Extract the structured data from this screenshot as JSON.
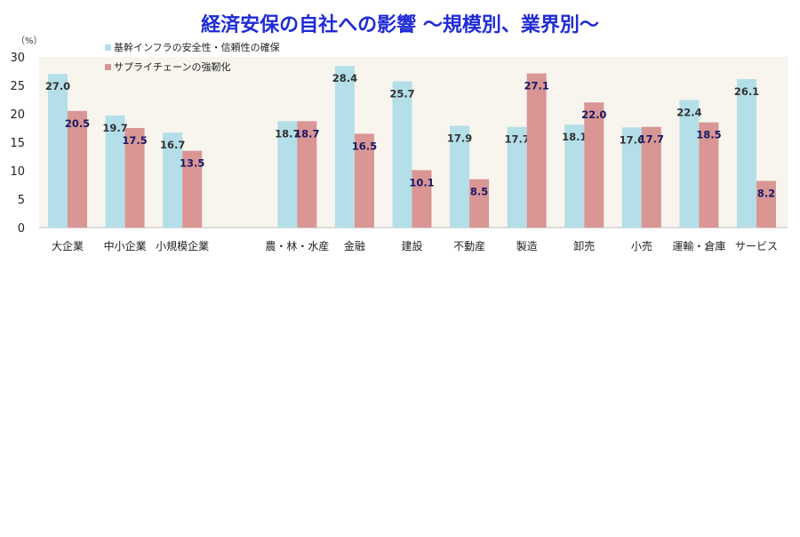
{
  "title": "経済安保の自社への影響 ～規模別、業界別～",
  "chart_data": {
    "type": "bar",
    "y_unit": "（%）",
    "ylim": [
      0,
      30
    ],
    "yticks": [
      0,
      5,
      10,
      15,
      20,
      25,
      30
    ],
    "grid": false,
    "legend_position": "top-left",
    "categories": [
      "大企業",
      "中小企業",
      "小規模企業",
      "",
      "農・林・水産",
      "金融",
      "建設",
      "不動産",
      "製造",
      "卸売",
      "小売",
      "運輸・倉庫",
      "サービス"
    ],
    "series": [
      {
        "name": "基幹インフラの安全性・信頼性の確保",
        "color": "#b4dfe8",
        "values": [
          27.0,
          19.7,
          16.7,
          null,
          18.7,
          28.4,
          25.7,
          17.9,
          17.7,
          18.1,
          17.6,
          22.4,
          26.1
        ],
        "labels": [
          "27.0",
          "19.7",
          "16.7",
          "",
          "18.7",
          "28.4",
          "25.7",
          "17.9",
          "17.7",
          "18.1",
          "17.6",
          "22.4",
          "26.1"
        ]
      },
      {
        "name": "サプライチェーンの強靭化",
        "color": "#d99694",
        "values": [
          20.5,
          17.5,
          13.5,
          null,
          18.7,
          16.5,
          10.1,
          8.5,
          27.1,
          22.0,
          17.7,
          18.5,
          8.2
        ],
        "labels": [
          "20.5",
          "17.5",
          "13.5",
          "",
          "18.7",
          "16.5",
          "10.1",
          "8.5",
          "27.1",
          "22.0",
          "17.7",
          "18.5",
          "8.2"
        ]
      }
    ]
  }
}
